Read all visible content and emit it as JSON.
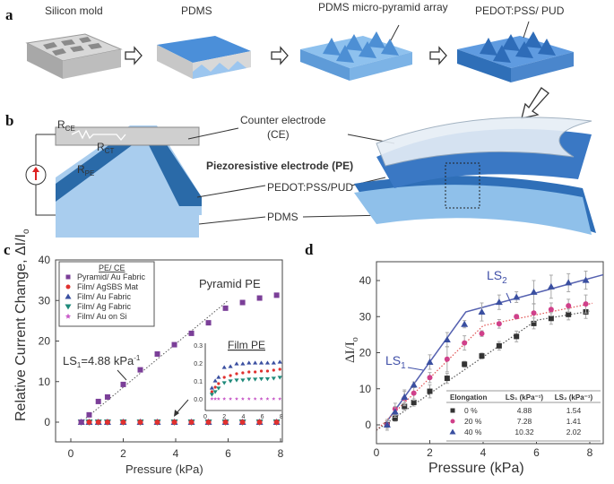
{
  "panel_a": {
    "letter": "a",
    "steps": [
      "Silicon mold",
      "PDMS",
      "PDMS micro-pyramid array",
      "PEDOT:PSS/ PUD"
    ],
    "colors": {
      "mold": "#b9b9b9",
      "pdms": "#5b95d6",
      "pyramid": "#6aa6e0",
      "pedot": "#3f7ec9"
    }
  },
  "panel_b": {
    "letter": "b",
    "r_ce": "R",
    "r_ce_sub": "CE",
    "r_ct": "R",
    "r_ct_sub": "CT",
    "r_pe": "R",
    "r_pe_sub": "PE",
    "counter_electrode": "Counter electrode",
    "counter_electrode_abbr": "(CE)",
    "piezo_electrode": "Piezoresistive electrode (PE)",
    "pedot": "PEDOT:PSS/PUD",
    "pdms": "PDMS"
  },
  "chart_data": [
    {
      "panel": "c",
      "type": "scatter",
      "xlabel": "Pressure (kPa)",
      "ylabel": "Relative Current Change, ΔI/I",
      "ylabel_sub": "o",
      "xlim": [
        -0.5,
        8.3
      ],
      "ylim": [
        -5,
        40
      ],
      "xticks": [
        "0",
        "2",
        "4",
        "6",
        "8"
      ],
      "yticks": [
        "0",
        "10",
        "20",
        "30",
        "40"
      ],
      "legend_title": "PE/ CE",
      "legend_position": "top-left",
      "series": [
        {
          "name": "Pyramid/ Au Fabric",
          "color": "#7b3f98",
          "marker": "square",
          "x": [
            0.4,
            0.7,
            1.05,
            1.4,
            2.0,
            2.65,
            3.3,
            3.95,
            4.6,
            5.25,
            5.9,
            6.55,
            7.2,
            7.85
          ],
          "y": [
            0,
            1.8,
            5.1,
            6.2,
            9.3,
            12.9,
            16.8,
            19.1,
            21.9,
            24.5,
            28.1,
            29.5,
            30.6,
            31.3
          ]
        },
        {
          "name": "Film/ AgSBS Mat",
          "color": "#e0312f",
          "marker": "circle",
          "x": [
            0.4,
            0.7,
            1.05,
            1.4,
            2.0,
            2.65,
            3.3,
            3.95,
            4.6,
            5.25,
            5.9,
            6.55,
            7.2,
            7.85
          ],
          "y": [
            0,
            0,
            0,
            0,
            0,
            0,
            0,
            0,
            0,
            0,
            0,
            0,
            0,
            0
          ]
        },
        {
          "name": "Film/ Au Fabric",
          "color": "#3a4fa0",
          "marker": "triangle-up",
          "x": [
            0.4,
            0.7,
            1.05,
            1.4,
            2.0,
            2.65,
            3.3,
            3.95,
            4.6,
            5.25,
            5.9,
            6.55,
            7.2,
            7.85
          ],
          "y": [
            0,
            0,
            0,
            0,
            0,
            0,
            0,
            0,
            0,
            0,
            0,
            0,
            0,
            0
          ]
        },
        {
          "name": "Film/ Ag Fabric",
          "color": "#1f8a7a",
          "marker": "triangle-down",
          "x": [
            0.4,
            0.7,
            1.05,
            1.4,
            2.0,
            2.65,
            3.3,
            3.95,
            4.6,
            5.25,
            5.9,
            6.55,
            7.2,
            7.85
          ],
          "y": [
            0,
            0,
            0,
            0,
            0,
            0,
            0,
            0,
            0,
            0,
            0,
            0,
            0,
            0
          ]
        },
        {
          "name": "Film/ Au on Si",
          "color": "#c85ac8",
          "marker": "star",
          "x": [
            0.4,
            0.7,
            1.05,
            1.4,
            2.0,
            2.65,
            3.3,
            3.95,
            4.6,
            5.25,
            5.9,
            6.55,
            7.2,
            7.85
          ],
          "y": [
            0,
            0,
            0,
            0,
            0,
            0,
            0,
            0,
            0,
            0,
            0,
            0,
            0,
            0
          ]
        }
      ],
      "fit": {
        "x": [
          0.3,
          6.0
        ],
        "y": [
          -0.5,
          30
        ]
      },
      "annotations": {
        "pyramid": "Pyramid PE",
        "slope": "LS",
        "slope_sub": "1",
        "slope_value": "=4.88 kPa",
        "slope_exp": "-1"
      },
      "inset": {
        "title": "Film PE",
        "xlim": [
          0,
          8
        ],
        "ylim": [
          -0.03,
          0.3
        ],
        "xticks": [
          "0",
          "2",
          "4",
          "6",
          "8"
        ],
        "yticks": [
          "0.0",
          "0.1",
          "0.2",
          "0.3"
        ],
        "x": [
          0.7,
          1.05,
          1.4,
          2.0,
          2.65,
          3.3,
          3.95,
          4.6,
          5.25,
          5.9,
          6.55,
          7.2,
          7.85
        ],
        "series": [
          {
            "name": "Film/ Au Fabric",
            "y": [
              0.06,
              0.1,
              0.12,
              0.175,
              0.18,
              0.195,
              0.195,
              0.2,
              0.2,
              0.2,
              0.2,
              0.2,
              0.205
            ]
          },
          {
            "name": "Film/ AgSBS Mat",
            "y": [
              0.04,
              0.065,
              0.085,
              0.12,
              0.13,
              0.14,
              0.145,
              0.15,
              0.15,
              0.155,
              0.155,
              0.16,
              0.165
            ]
          },
          {
            "name": "Film/ Ag Fabric",
            "y": [
              0.025,
              0.04,
              0.06,
              0.09,
              0.1,
              0.105,
              0.105,
              0.11,
              0.11,
              0.112,
              0.112,
              0.115,
              0.12
            ]
          },
          {
            "name": "Film/ Au on Si",
            "y": [
              0,
              0,
              0,
              0,
              0,
              0,
              0,
              0,
              0,
              0,
              0,
              0,
              0
            ]
          }
        ]
      }
    },
    {
      "panel": "d",
      "type": "scatter",
      "xlabel": "Pressure (kPa)",
      "ylabel": "ΔI/I",
      "ylabel_sub": "o",
      "xlim": [
        0,
        8.5
      ],
      "ylim": [
        -5,
        45
      ],
      "xticks": [
        "0",
        "2",
        "4",
        "6",
        "8"
      ],
      "yticks": [
        "0",
        "10",
        "20",
        "30",
        "40"
      ],
      "series": [
        {
          "name": "0 %",
          "color": "#333333",
          "marker": "square",
          "x": [
            0.4,
            0.7,
            1.05,
            1.4,
            2.0,
            2.65,
            3.3,
            3.95,
            4.6,
            5.25,
            5.9,
            6.55,
            7.2,
            7.85
          ],
          "y": [
            0,
            1.8,
            5.1,
            6.2,
            9.3,
            12.9,
            16.8,
            19.1,
            21.9,
            24.5,
            28.1,
            29.5,
            30.6,
            31.3
          ],
          "err": [
            1,
            0.8,
            1,
            1,
            1.8,
            1.4,
            0.8,
            0.8,
            1.2,
            1.5,
            1.5,
            1.6,
            1.5,
            1.8
          ]
        },
        {
          "name": "20 %",
          "color": "#d0408a",
          "marker": "circle",
          "x": [
            0.4,
            0.7,
            1.05,
            1.4,
            2.0,
            2.65,
            3.3,
            3.95,
            4.6,
            5.25,
            5.9,
            6.55,
            7.2,
            7.85
          ],
          "y": [
            0,
            4.4,
            7.3,
            8.8,
            13.1,
            18.2,
            22.7,
            25.3,
            28,
            30,
            31,
            32,
            33,
            33.5
          ],
          "err": [
            1.5,
            1.6,
            2,
            2,
            1.4,
            3.5,
            2,
            0.8,
            1.2,
            0.6,
            2.5,
            1.8,
            1.8,
            2.5
          ]
        },
        {
          "name": "40 %",
          "color": "#3a4fa0",
          "marker": "triangle-up",
          "x": [
            0.4,
            0.7,
            1.05,
            1.4,
            2.0,
            2.65,
            3.3,
            3.95,
            4.6,
            5.25,
            5.9,
            6.55,
            7.2,
            7.85
          ],
          "y": [
            0,
            3.6,
            7.7,
            11.1,
            17.4,
            23.6,
            27.9,
            31.3,
            34,
            35.4,
            36.8,
            38.3,
            39.4,
            40.1
          ],
          "err": [
            1,
            1.5,
            2,
            0.8,
            2,
            2,
            1,
            2.5,
            2,
            1.5,
            3.2,
            3.2,
            2.5,
            2.5
          ]
        }
      ],
      "fits": [
        {
          "color": "#5561b0",
          "style": "solid",
          "x": [
            0.3,
            3.35,
            8.5
          ],
          "y": [
            0,
            31.3,
            41.6
          ]
        },
        {
          "color": "#e05050",
          "style": "dotted",
          "x": [
            0,
            4,
            8.1
          ],
          "y": [
            -1.5,
            27.5,
            33.7
          ]
        },
        {
          "color": "#555555",
          "style": "dotted",
          "x": [
            0,
            6,
            8
          ],
          "y": [
            -1.5,
            29,
            31.5
          ]
        }
      ],
      "annotations": {
        "ls1": "LS",
        "ls1_sub": "1",
        "ls2": "LS",
        "ls2_sub": "2"
      },
      "table": {
        "headers": [
          "Elongation",
          "LS₁ (kPa⁻¹)",
          "LS₂ (kPa⁻¹)"
        ],
        "rows": [
          [
            "0 %",
            "4.88",
            "1.54"
          ],
          [
            "20 %",
            "7.28",
            "1.41"
          ],
          [
            "40 %",
            "10.32",
            "2.02"
          ]
        ]
      }
    }
  ]
}
